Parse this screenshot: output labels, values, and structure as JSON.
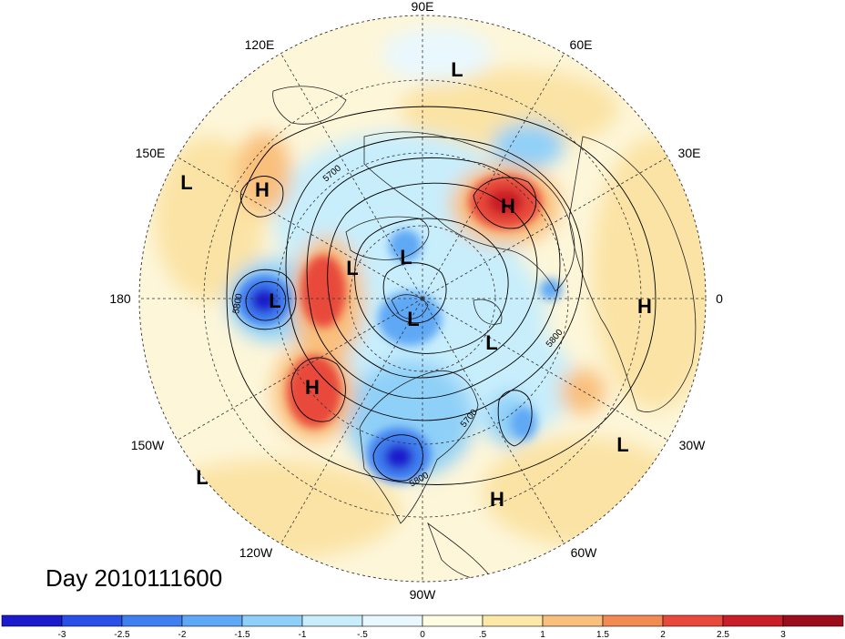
{
  "title": "Day 2010111600",
  "longitude_labels": [
    "90E",
    "60E",
    "30E",
    "0",
    "30W",
    "60W",
    "90W",
    "120W",
    "150W",
    "180",
    "150E",
    "120E"
  ],
  "contour_labels": [
    "5700",
    "5800",
    "5800",
    "5700",
    "5800",
    "5800"
  ],
  "centers": [
    {
      "type": "L",
      "lon_label": "75E"
    },
    {
      "type": "H",
      "lon_label": "40E"
    },
    {
      "type": "L",
      "lon_label": "150E"
    },
    {
      "type": "H",
      "lon_label": "140E"
    },
    {
      "type": "L",
      "lon_label": "180"
    },
    {
      "type": "L",
      "lon_label": "140E"
    },
    {
      "type": "L",
      "lon_label": "120E"
    },
    {
      "type": "L",
      "lon_label": "pole"
    },
    {
      "type": "L",
      "lon_label": "30W"
    },
    {
      "type": "H",
      "lon_label": "0"
    },
    {
      "type": "H",
      "lon_label": "150W"
    },
    {
      "type": "L",
      "lon_label": "30W"
    },
    {
      "type": "L",
      "lon_label": "150W"
    },
    {
      "type": "H",
      "lon_label": "70W"
    }
  ],
  "colorbar": {
    "ticks": [
      "-3",
      "-2.5",
      "-2",
      "-1.5",
      "-1",
      "-.5",
      "0",
      ".5",
      "1",
      "1.5",
      "2",
      "2.5",
      "3"
    ],
    "colors": [
      "#1b1bcc",
      "#2a4fe6",
      "#3f7ff0",
      "#5fa8f5",
      "#8fd0f8",
      "#c8eefc",
      "#e9f8fe",
      "#fefde2",
      "#fde8a8",
      "#f9bf7c",
      "#f28a54",
      "#e8493a",
      "#c81e27",
      "#9c0d1c"
    ]
  },
  "colors": {
    "background": "#ffffff",
    "neutral_fill": "#fdf6d9"
  }
}
